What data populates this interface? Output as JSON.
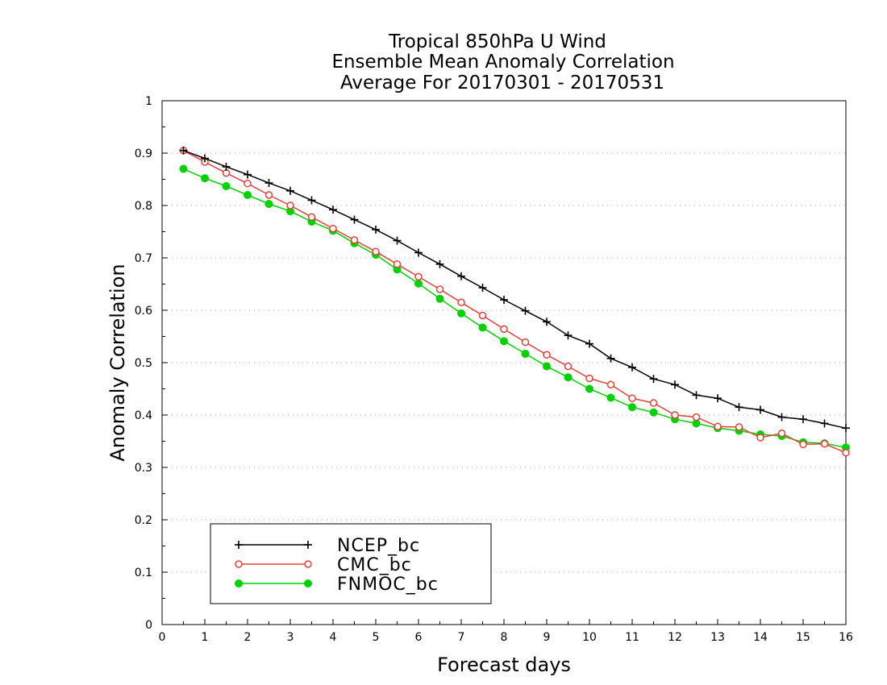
{
  "chart_data": {
    "type": "line",
    "title_lines": [
      "Tropical 850hPa U Wind",
      "Ensemble Mean Anomaly Correlation",
      "Average For 20170301 - 20170531"
    ],
    "xlabel": "Forecast days",
    "ylabel": "Anomaly Correlation",
    "xlim": [
      0,
      16
    ],
    "ylim": [
      0,
      1
    ],
    "xticks": [
      "0",
      "1",
      "2",
      "3",
      "4",
      "5",
      "6",
      "7",
      "8",
      "9",
      "10",
      "11",
      "12",
      "13",
      "14",
      "15",
      "16"
    ],
    "yticks": [
      "0",
      "0.1",
      "0.2",
      "0.3",
      "0.4",
      "0.5",
      "0.6",
      "0.7",
      "0.8",
      "0.9",
      "1"
    ],
    "grid": "dotted horizontal",
    "legend_position": "bottom-left",
    "x": [
      0.5,
      1,
      1.5,
      2,
      2.5,
      3,
      3.5,
      4,
      4.5,
      5,
      5.5,
      6,
      6.5,
      7,
      7.5,
      8,
      8.5,
      9,
      9.5,
      10,
      10.5,
      11,
      11.5,
      12,
      12.5,
      13,
      13.5,
      14,
      14.5,
      15,
      15.5,
      16
    ],
    "series": [
      {
        "name": "NCEP_bc",
        "color": "#000000",
        "marker": "plus",
        "values": [
          0.905,
          0.89,
          0.874,
          0.859,
          0.843,
          0.828,
          0.81,
          0.792,
          0.773,
          0.754,
          0.733,
          0.71,
          0.688,
          0.665,
          0.643,
          0.62,
          0.599,
          0.578,
          0.552,
          0.536,
          0.508,
          0.491,
          0.469,
          0.458,
          0.438,
          0.432,
          0.415,
          0.41,
          0.396,
          0.392,
          0.384,
          0.375
        ]
      },
      {
        "name": "CMC_bc",
        "color": "#e8403a",
        "marker": "open-circle",
        "values": [
          0.905,
          0.883,
          0.862,
          0.842,
          0.82,
          0.8,
          0.778,
          0.756,
          0.734,
          0.712,
          0.688,
          0.664,
          0.64,
          0.615,
          0.59,
          0.564,
          0.539,
          0.515,
          0.493,
          0.47,
          0.458,
          0.432,
          0.423,
          0.4,
          0.396,
          0.378,
          0.377,
          0.357,
          0.365,
          0.344,
          0.345,
          0.328
        ]
      },
      {
        "name": "FNMOC_bc",
        "color": "#00d200",
        "marker": "filled-circle",
        "values": [
          0.87,
          0.852,
          0.837,
          0.82,
          0.803,
          0.789,
          0.769,
          0.752,
          0.728,
          0.706,
          0.678,
          0.651,
          0.622,
          0.594,
          0.567,
          0.541,
          0.517,
          0.493,
          0.472,
          0.45,
          0.433,
          0.415,
          0.405,
          0.392,
          0.384,
          0.375,
          0.37,
          0.363,
          0.36,
          0.348,
          0.346,
          0.338
        ]
      }
    ]
  }
}
